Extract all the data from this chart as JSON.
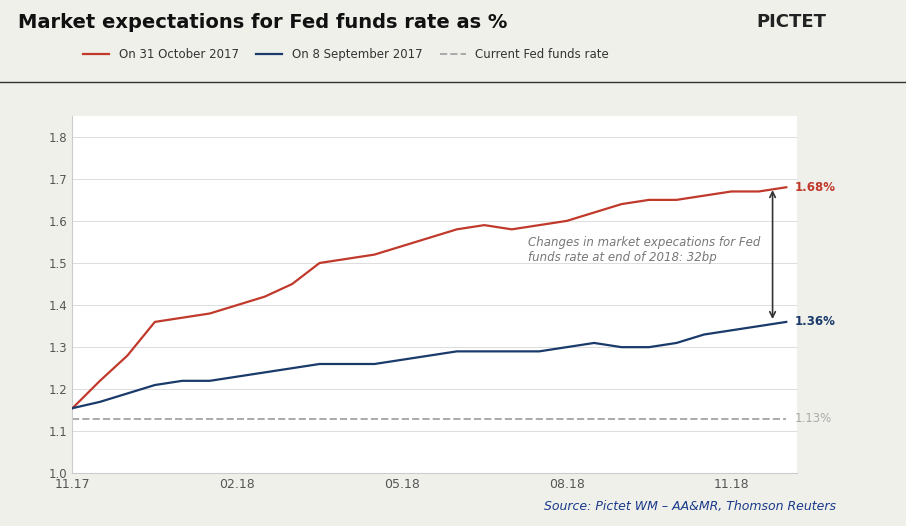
{
  "title": "Market expectations for Fed funds rate as %",
  "background_color": "#f0f0eb",
  "plot_bg_color": "#ffffff",
  "ylim": [
    1.0,
    1.85
  ],
  "yticks": [
    1.0,
    1.1,
    1.2,
    1.3,
    1.4,
    1.5,
    1.6,
    1.7,
    1.8
  ],
  "xtick_labels": [
    "11.17",
    "02.18",
    "05.18",
    "08.18",
    "11.18"
  ],
  "source_text": "Source: Pictet WM – AA&MR, Thomson Reuters",
  "current_fed_rate": 1.13,
  "current_fed_label": "1.13%",
  "legend_entries": [
    "On 31 October 2017",
    "On 8 September 2017",
    "Current Fed funds rate"
  ],
  "annotation_text": "Changes in market expecations for Fed\nfunds rate at end of 2018: 32bp",
  "red_label": "1.68%",
  "blue_label": "1.36%",
  "red_end_value": 1.68,
  "blue_end_value": 1.36,
  "red_color": "#c0392b",
  "blue_color": "#1a3a6b",
  "dashed_color": "#aaaaaa",
  "red_x": [
    0,
    0.5,
    1.0,
    1.5,
    2.0,
    2.5,
    3.0,
    3.5,
    4.0,
    4.5,
    5.0,
    5.5,
    6.0,
    6.5,
    7.0,
    7.5,
    8.0,
    8.5,
    9.0,
    9.5,
    10.0,
    10.5,
    11.0,
    11.5,
    12.0,
    12.5,
    13.0
  ],
  "red_y": [
    1.155,
    1.22,
    1.28,
    1.36,
    1.37,
    1.38,
    1.4,
    1.42,
    1.45,
    1.5,
    1.51,
    1.52,
    1.54,
    1.56,
    1.58,
    1.59,
    1.58,
    1.59,
    1.6,
    1.62,
    1.64,
    1.65,
    1.65,
    1.66,
    1.67,
    1.67,
    1.68
  ],
  "blue_x": [
    0,
    0.5,
    1.0,
    1.5,
    2.0,
    2.5,
    3.0,
    3.5,
    4.0,
    4.5,
    5.0,
    5.5,
    6.0,
    6.5,
    7.0,
    7.5,
    8.0,
    8.5,
    9.0,
    9.5,
    10.0,
    10.5,
    11.0,
    11.5,
    12.0,
    12.5,
    13.0
  ],
  "blue_y": [
    1.155,
    1.17,
    1.19,
    1.21,
    1.22,
    1.22,
    1.23,
    1.24,
    1.25,
    1.26,
    1.26,
    1.26,
    1.27,
    1.28,
    1.29,
    1.29,
    1.29,
    1.29,
    1.3,
    1.31,
    1.3,
    1.3,
    1.31,
    1.33,
    1.34,
    1.35,
    1.36
  ],
  "xtick_positions": [
    0,
    3.0,
    6.0,
    9.0,
    12.0
  ],
  "pictet_text": "PICTET",
  "pictet_color": "#222222",
  "title_color": "#111111",
  "title_fontsize": 14,
  "source_color": "#1a3a8b"
}
